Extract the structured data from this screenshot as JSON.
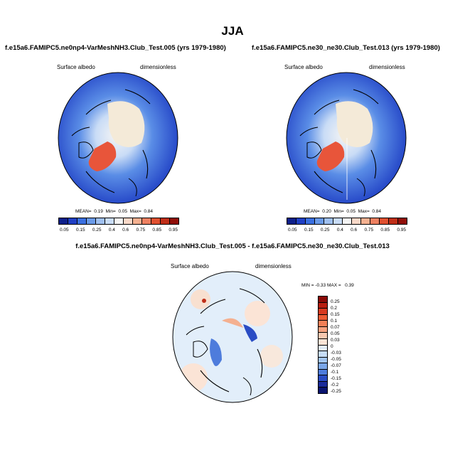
{
  "season": "JJA",
  "panel_left": {
    "title": "f.e15a6.FAMIPC5.ne0np4-VarMeshNH3.Club_Test.005 (yrs 1979-1980)",
    "variable": "Surface albedo",
    "units": "dimensionless",
    "stats": {
      "mean_label": "MEAN=",
      "mean": "0.19",
      "min_label": "Min=",
      "min": "0.05",
      "max_label": "Max=",
      "max": "0.84"
    }
  },
  "panel_right": {
    "title": "f.e15a6.FAMIPC5.ne30_ne30.Club_Test.013 (yrs 1979-1980)",
    "variable": "Surface albedo",
    "units": "dimensionless",
    "stats": {
      "mean_label": "MEAN=",
      "mean": "0.20",
      "min_label": "Min=",
      "min": "0.05",
      "max_label": "Max=",
      "max": "0.84"
    }
  },
  "colorbar_abs": {
    "labels": [
      "0.05",
      "0.15",
      "0.25",
      "0.4",
      "0.6",
      "0.75",
      "0.85",
      "0.95"
    ],
    "colors": [
      "#0d1f8a",
      "#1f3fc4",
      "#3a6fe0",
      "#6a9ae8",
      "#9fc0f0",
      "#c9dcf6",
      "#f4f4f4",
      "#f8d8c8",
      "#f4b090",
      "#ee8060",
      "#e05030",
      "#c02e18",
      "#900e08"
    ]
  },
  "panel_diff": {
    "title": "f.e15a6.FAMIPC5.ne0np4-VarMeshNH3.Club_Test.005 - f.e15a6.FAMIPC5.ne30_ne30.Club_Test.013",
    "variable": "Surface albedo",
    "units": "dimensionless",
    "stats": {
      "min_label": "MIN =",
      "min": "-0.33",
      "max_label": "MAX =",
      "max": "0.39"
    }
  },
  "colorbar_diff": {
    "labels": [
      "0.25",
      "0.2",
      "0.15",
      "0.1",
      "0.07",
      "0.05",
      "0.03",
      "0",
      "-0.03",
      "-0.05",
      "-0.07",
      "-0.1",
      "-0.15",
      "-0.2",
      "-0.25"
    ],
    "colors": [
      "#8a0a06",
      "#b81e10",
      "#d83a20",
      "#ec5c34",
      "#f28058",
      "#f5a280",
      "#f8c8b0",
      "#fbe4d6",
      "#e2eefa",
      "#c6dcf6",
      "#a2c4f0",
      "#7aa6e8",
      "#4e7cdc",
      "#2a4cc4",
      "#1a2a9a",
      "#0a1470"
    ]
  }
}
